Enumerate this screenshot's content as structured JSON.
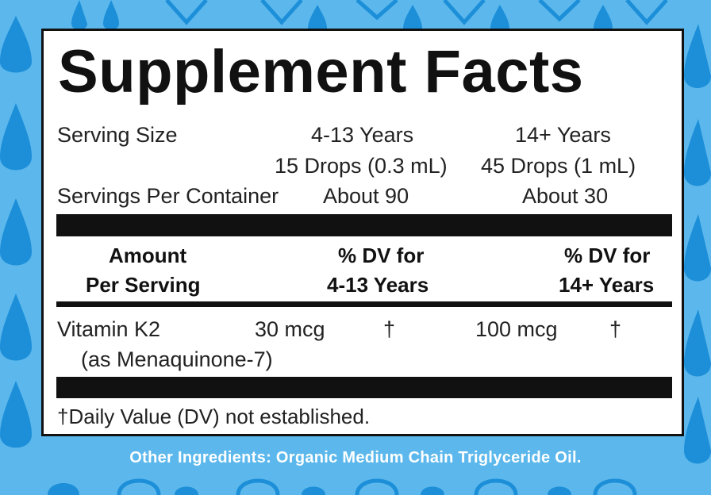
{
  "colors": {
    "background": "#5cb8ec",
    "pattern": "#1d8fd9",
    "panel": "#ffffff",
    "text": "#111111",
    "footer_text": "#ffffff"
  },
  "background_pattern": "water-drop-icon",
  "label": {
    "title": "Supplement Facts",
    "serving_size_label": "Serving Size",
    "col_4_13_header": "4-13 Years",
    "col_14_header": "14+ Years",
    "serving_4_13": "15 Drops (0.3 mL)",
    "serving_14": "45 Drops (1 mL)",
    "servings_per_container_label": "Servings Per Container",
    "servings_4_13": "About 90",
    "servings_14": "About 30",
    "amount_header_line1": "Amount",
    "amount_header_line2": "Per Serving",
    "dv_4_13_line1": "% DV for",
    "dv_4_13_line2": "4-13 Years",
    "dv_14_line1": "% DV for",
    "dv_14_line2": "14+ Years",
    "nutrient_name": "Vitamin K2",
    "nutrient_form": "(as Menaquinone-7)",
    "amount_4_13": "30 mcg",
    "dv_4_13": "†",
    "amount_14": "100 mcg",
    "dv_14": "†",
    "footnote": "†Daily Value (DV) not established."
  },
  "other_ingredients": "Other Ingredients: Organic Medium Chain Triglyceride Oil."
}
